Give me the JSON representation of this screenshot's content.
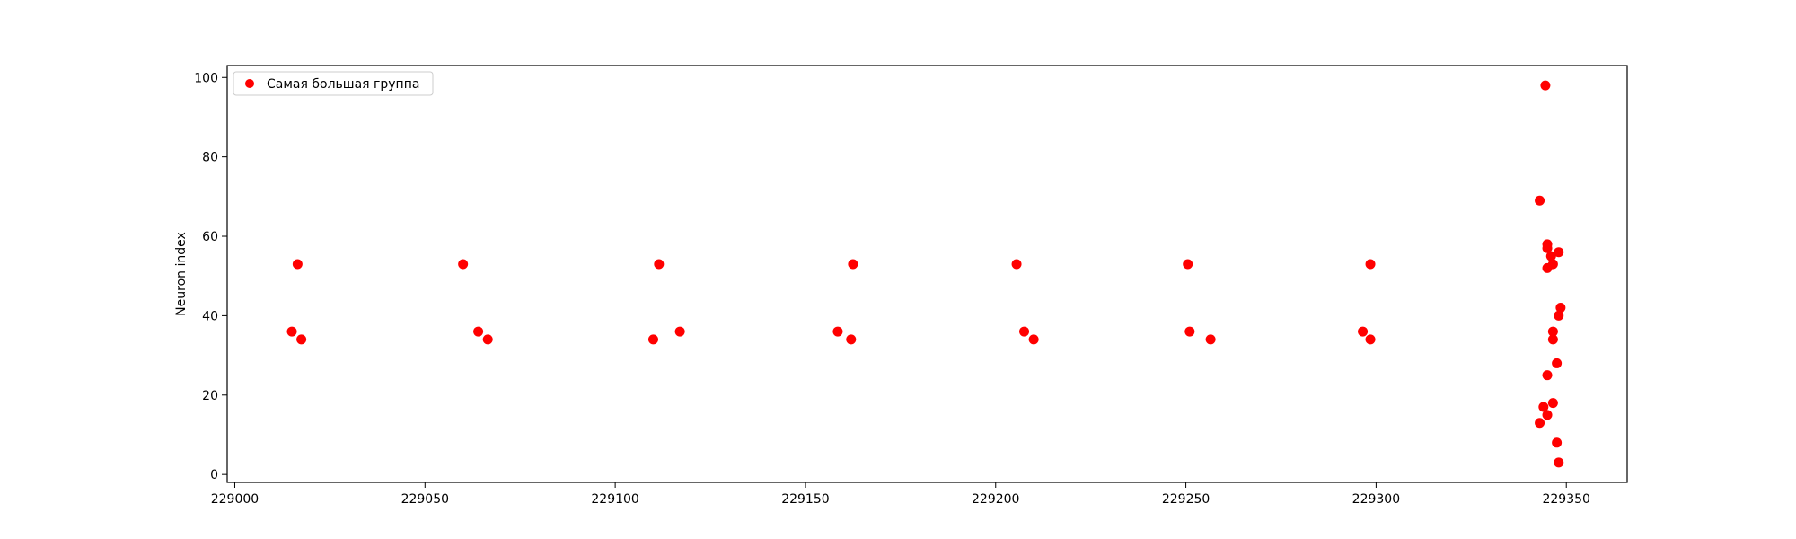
{
  "chart_data": {
    "type": "scatter",
    "title": "",
    "xlabel": "",
    "ylabel": "Neuron index",
    "xlim": [
      228998,
      229366
    ],
    "ylim": [
      -2,
      103
    ],
    "xticks": [
      "229000",
      "229050",
      "229100",
      "229150",
      "229200",
      "229250",
      "229300",
      "229350"
    ],
    "yticks": [
      "0",
      "20",
      "40",
      "60",
      "80",
      "100"
    ],
    "grid": false,
    "legend": "top-left",
    "series": [
      {
        "name": "Самая большая группа",
        "color": "#ff0000",
        "points": [
          [
            229015,
            36
          ],
          [
            229016.5,
            53
          ],
          [
            229017.5,
            34
          ],
          [
            229060,
            53
          ],
          [
            229064,
            36
          ],
          [
            229066.5,
            34
          ],
          [
            229110,
            34
          ],
          [
            229111.5,
            53
          ],
          [
            229117,
            36
          ],
          [
            229158.5,
            36
          ],
          [
            229162,
            34
          ],
          [
            229162.5,
            53
          ],
          [
            229205.5,
            53
          ],
          [
            229207.5,
            36
          ],
          [
            229210,
            34
          ],
          [
            229250.5,
            53
          ],
          [
            229251,
            36
          ],
          [
            229256.5,
            34
          ],
          [
            229296.5,
            36
          ],
          [
            229298.5,
            34
          ],
          [
            229298.5,
            53
          ],
          [
            229343,
            69
          ],
          [
            229343,
            13
          ],
          [
            229344,
            17
          ],
          [
            229344.5,
            98
          ],
          [
            229345,
            58
          ],
          [
            229345,
            57
          ],
          [
            229345,
            52
          ],
          [
            229345,
            25
          ],
          [
            229345,
            15
          ],
          [
            229346,
            55
          ],
          [
            229346.5,
            53
          ],
          [
            229346.5,
            36
          ],
          [
            229346.5,
            34
          ],
          [
            229346.5,
            18
          ],
          [
            229347.5,
            28
          ],
          [
            229347.5,
            8
          ],
          [
            229348,
            56
          ],
          [
            229348,
            40
          ],
          [
            229348,
            3
          ],
          [
            229348.5,
            42
          ]
        ]
      }
    ]
  }
}
